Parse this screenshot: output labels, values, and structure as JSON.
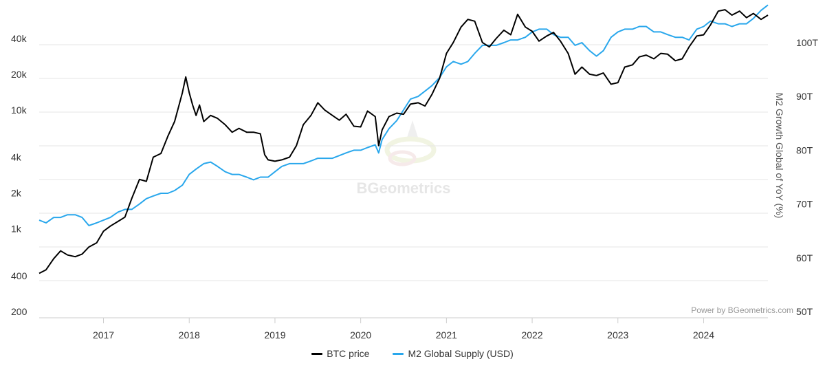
{
  "chart_data": {
    "type": "line",
    "watermark": "BGeometrics",
    "credit": "Power by BGeometrics.com",
    "y_left": {
      "scale": "log",
      "ticks": [
        200,
        400,
        1000,
        2000,
        4000,
        10000,
        20000,
        40000
      ],
      "tick_labels": [
        "200",
        "400",
        "1k",
        "2k",
        "4k",
        "10k",
        "20k",
        "40k"
      ]
    },
    "y_right": {
      "label": "M2 Growth Global of YoY (%)",
      "ticks": [
        50,
        60,
        70,
        80,
        90,
        100
      ],
      "tick_labels": [
        "50T",
        "60T",
        "70T",
        "80T",
        "90T",
        "100T"
      ]
    },
    "x_axis": {
      "range": [
        2016.25,
        2024.75
      ],
      "ticks": [
        2017,
        2018,
        2019,
        2020,
        2021,
        2022,
        2023,
        2024
      ],
      "tick_labels": [
        "2017",
        "2018",
        "2019",
        "2020",
        "2021",
        "2022",
        "2023",
        "2024"
      ]
    },
    "legend": {
      "placement": "bottom-center"
    },
    "series": [
      {
        "name": "BTC price",
        "axis": "left",
        "color": "#000000",
        "points": [
          [
            2016.25,
            420
          ],
          [
            2016.33,
            450
          ],
          [
            2016.42,
            560
          ],
          [
            2016.5,
            650
          ],
          [
            2016.58,
            600
          ],
          [
            2016.67,
            580
          ],
          [
            2016.75,
            610
          ],
          [
            2016.83,
            700
          ],
          [
            2016.92,
            760
          ],
          [
            2017.0,
            950
          ],
          [
            2017.08,
            1050
          ],
          [
            2017.17,
            1150
          ],
          [
            2017.25,
            1250
          ],
          [
            2017.33,
            1800
          ],
          [
            2017.42,
            2600
          ],
          [
            2017.5,
            2500
          ],
          [
            2017.58,
            4000
          ],
          [
            2017.67,
            4300
          ],
          [
            2017.75,
            6000
          ],
          [
            2017.83,
            8000
          ],
          [
            2017.92,
            14000
          ],
          [
            2017.96,
            19000
          ],
          [
            2018.0,
            14000
          ],
          [
            2018.04,
            11000
          ],
          [
            2018.08,
            9000
          ],
          [
            2018.12,
            11000
          ],
          [
            2018.17,
            8000
          ],
          [
            2018.25,
            9000
          ],
          [
            2018.33,
            8500
          ],
          [
            2018.42,
            7500
          ],
          [
            2018.5,
            6500
          ],
          [
            2018.58,
            7000
          ],
          [
            2018.67,
            6500
          ],
          [
            2018.75,
            6500
          ],
          [
            2018.83,
            6300
          ],
          [
            2018.88,
            4200
          ],
          [
            2018.92,
            3800
          ],
          [
            2019.0,
            3700
          ],
          [
            2019.08,
            3800
          ],
          [
            2019.17,
            4000
          ],
          [
            2019.25,
            5000
          ],
          [
            2019.33,
            7500
          ],
          [
            2019.42,
            9000
          ],
          [
            2019.5,
            11500
          ],
          [
            2019.58,
            10000
          ],
          [
            2019.67,
            9000
          ],
          [
            2019.75,
            8200
          ],
          [
            2019.83,
            9200
          ],
          [
            2019.92,
            7300
          ],
          [
            2020.0,
            7200
          ],
          [
            2020.08,
            9800
          ],
          [
            2020.17,
            8800
          ],
          [
            2020.21,
            5000
          ],
          [
            2020.25,
            6800
          ],
          [
            2020.33,
            8800
          ],
          [
            2020.42,
            9400
          ],
          [
            2020.5,
            9200
          ],
          [
            2020.58,
            11200
          ],
          [
            2020.67,
            11500
          ],
          [
            2020.75,
            10800
          ],
          [
            2020.83,
            13500
          ],
          [
            2020.92,
            18500
          ],
          [
            2021.0,
            30000
          ],
          [
            2021.08,
            37000
          ],
          [
            2021.17,
            50000
          ],
          [
            2021.25,
            58000
          ],
          [
            2021.33,
            56000
          ],
          [
            2021.42,
            37000
          ],
          [
            2021.5,
            34000
          ],
          [
            2021.58,
            40000
          ],
          [
            2021.67,
            47000
          ],
          [
            2021.75,
            43000
          ],
          [
            2021.83,
            64000
          ],
          [
            2021.92,
            50000
          ],
          [
            2022.0,
            46000
          ],
          [
            2022.08,
            38000
          ],
          [
            2022.17,
            42000
          ],
          [
            2022.25,
            45000
          ],
          [
            2022.33,
            38000
          ],
          [
            2022.42,
            30000
          ],
          [
            2022.5,
            20000
          ],
          [
            2022.58,
            23000
          ],
          [
            2022.67,
            20000
          ],
          [
            2022.75,
            19500
          ],
          [
            2022.83,
            20500
          ],
          [
            2022.92,
            16500
          ],
          [
            2023.0,
            17000
          ],
          [
            2023.08,
            23000
          ],
          [
            2023.17,
            24000
          ],
          [
            2023.25,
            28000
          ],
          [
            2023.33,
            29000
          ],
          [
            2023.42,
            27000
          ],
          [
            2023.5,
            30000
          ],
          [
            2023.58,
            29500
          ],
          [
            2023.67,
            26000
          ],
          [
            2023.75,
            27000
          ],
          [
            2023.83,
            34000
          ],
          [
            2023.92,
            42000
          ],
          [
            2024.0,
            43000
          ],
          [
            2024.08,
            52000
          ],
          [
            2024.17,
            68000
          ],
          [
            2024.25,
            70000
          ],
          [
            2024.33,
            63000
          ],
          [
            2024.42,
            68000
          ],
          [
            2024.5,
            60000
          ],
          [
            2024.58,
            65000
          ],
          [
            2024.67,
            58000
          ],
          [
            2024.75,
            63000
          ]
        ]
      },
      {
        "name": "M2 Global Supply (USD)",
        "axis": "right",
        "color": "#29a7ec",
        "points": [
          [
            2016.25,
            67
          ],
          [
            2016.33,
            66.5
          ],
          [
            2016.42,
            67.5
          ],
          [
            2016.5,
            67.5
          ],
          [
            2016.58,
            68
          ],
          [
            2016.67,
            68
          ],
          [
            2016.75,
            67.5
          ],
          [
            2016.83,
            66
          ],
          [
            2016.92,
            66.5
          ],
          [
            2017.0,
            67
          ],
          [
            2017.08,
            67.5
          ],
          [
            2017.17,
            68.5
          ],
          [
            2017.25,
            69
          ],
          [
            2017.33,
            69
          ],
          [
            2017.42,
            70
          ],
          [
            2017.5,
            71
          ],
          [
            2017.58,
            71.5
          ],
          [
            2017.67,
            72
          ],
          [
            2017.75,
            72
          ],
          [
            2017.83,
            72.5
          ],
          [
            2017.92,
            73.5
          ],
          [
            2018.0,
            75.5
          ],
          [
            2018.08,
            76.5
          ],
          [
            2018.17,
            77.5
          ],
          [
            2018.25,
            77.8
          ],
          [
            2018.33,
            77
          ],
          [
            2018.42,
            76
          ],
          [
            2018.5,
            75.5
          ],
          [
            2018.58,
            75.5
          ],
          [
            2018.67,
            75
          ],
          [
            2018.75,
            74.5
          ],
          [
            2018.83,
            75
          ],
          [
            2018.92,
            75
          ],
          [
            2019.0,
            76
          ],
          [
            2019.08,
            77
          ],
          [
            2019.17,
            77.5
          ],
          [
            2019.25,
            77.5
          ],
          [
            2019.33,
            77.5
          ],
          [
            2019.42,
            78
          ],
          [
            2019.5,
            78.5
          ],
          [
            2019.58,
            78.5
          ],
          [
            2019.67,
            78.5
          ],
          [
            2019.75,
            79
          ],
          [
            2019.83,
            79.5
          ],
          [
            2019.92,
            80
          ],
          [
            2020.0,
            80
          ],
          [
            2020.08,
            80.5
          ],
          [
            2020.17,
            81
          ],
          [
            2020.21,
            79.5
          ],
          [
            2020.25,
            82
          ],
          [
            2020.33,
            84
          ],
          [
            2020.42,
            85.5
          ],
          [
            2020.5,
            87.5
          ],
          [
            2020.58,
            89.5
          ],
          [
            2020.67,
            90
          ],
          [
            2020.75,
            91
          ],
          [
            2020.83,
            92
          ],
          [
            2020.92,
            93.5
          ],
          [
            2021.0,
            95.5
          ],
          [
            2021.08,
            96.5
          ],
          [
            2021.17,
            96
          ],
          [
            2021.25,
            96.5
          ],
          [
            2021.33,
            98
          ],
          [
            2021.42,
            99.5
          ],
          [
            2021.5,
            99.5
          ],
          [
            2021.58,
            99.5
          ],
          [
            2021.67,
            100
          ],
          [
            2021.75,
            100.5
          ],
          [
            2021.83,
            100.5
          ],
          [
            2021.92,
            101
          ],
          [
            2022.0,
            102
          ],
          [
            2022.08,
            102.5
          ],
          [
            2022.17,
            102.5
          ],
          [
            2022.25,
            101.5
          ],
          [
            2022.33,
            101
          ],
          [
            2022.42,
            101
          ],
          [
            2022.5,
            99.5
          ],
          [
            2022.58,
            100
          ],
          [
            2022.67,
            98.5
          ],
          [
            2022.75,
            97.5
          ],
          [
            2022.83,
            98.5
          ],
          [
            2022.92,
            101
          ],
          [
            2023.0,
            102
          ],
          [
            2023.08,
            102.5
          ],
          [
            2023.17,
            102.5
          ],
          [
            2023.25,
            103
          ],
          [
            2023.33,
            103
          ],
          [
            2023.42,
            102
          ],
          [
            2023.5,
            102
          ],
          [
            2023.58,
            101.5
          ],
          [
            2023.67,
            101
          ],
          [
            2023.75,
            101
          ],
          [
            2023.83,
            100.5
          ],
          [
            2023.92,
            102.5
          ],
          [
            2024.0,
            103
          ],
          [
            2024.08,
            104
          ],
          [
            2024.17,
            103.5
          ],
          [
            2024.25,
            103.5
          ],
          [
            2024.33,
            103
          ],
          [
            2024.42,
            103.5
          ],
          [
            2024.5,
            103.5
          ],
          [
            2024.58,
            104.5
          ],
          [
            2024.67,
            106
          ],
          [
            2024.75,
            107
          ]
        ]
      }
    ]
  }
}
